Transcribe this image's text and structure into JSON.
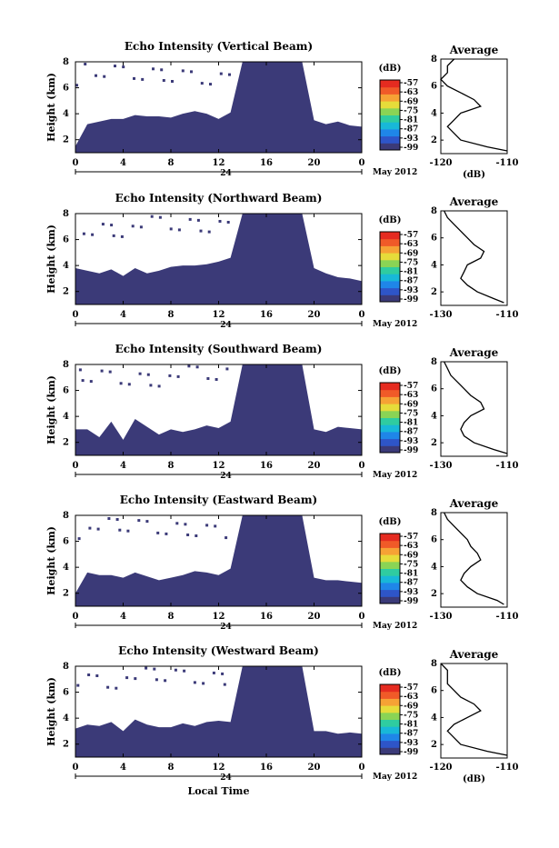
{
  "figure": {
    "xlabel": "Local Time",
    "date_label": "May 2012",
    "day_label": "24",
    "avg_title": "Average",
    "avg_unit": "(dB)",
    "cbar_unit": "(dB)",
    "ylabel": "Height (km)"
  },
  "colors": {
    "echo_fill": "#3b3a78",
    "background": "#ffffff",
    "colorbar": [
      "#3b3a78",
      "#2e55c8",
      "#1f86e8",
      "#18b8d8",
      "#2fcca0",
      "#8ad455",
      "#e6dc3a",
      "#f6a235",
      "#f05a28",
      "#e52b20"
    ]
  },
  "chart_data": [
    {
      "type": "heatmap",
      "title": "Echo Intensity (Vertical Beam)",
      "xlabel": "",
      "ylabel": "Height (km)",
      "x_ticks": [
        "0",
        "4",
        "8",
        "12",
        "16",
        "20",
        "0"
      ],
      "y_ticks": [
        "2",
        "4",
        "6",
        "8"
      ],
      "xlim": [
        0,
        24
      ],
      "ylim": [
        1,
        8
      ],
      "colorbar_ticks": [
        "-57",
        "-63",
        "-69",
        "-75",
        "-81",
        "-87",
        "-93",
        "-99"
      ],
      "top_height_km": [
        1.5,
        3.2,
        3.4,
        3.6,
        3.6,
        3.9,
        3.8,
        3.8,
        3.7,
        4.0,
        4.2,
        4.0,
        3.6,
        4.1,
        8.0,
        8.0,
        8.0,
        8.0,
        8.0,
        8.0,
        3.5,
        3.2,
        3.4,
        3.1,
        3.0
      ],
      "average": {
        "xlim": [
          -120,
          -110
        ],
        "x_ticks": [
          "-120",
          "-110"
        ],
        "y_ticks": [
          "2",
          "4",
          "6",
          "8"
        ],
        "ylim": [
          1,
          8
        ],
        "height_km": [
          1.2,
          1.5,
          2.0,
          2.5,
          3.0,
          3.5,
          4.0,
          4.5,
          5.0,
          5.5,
          6.0,
          6.5,
          7.0,
          7.5,
          8.0
        ],
        "value_db": [
          -110,
          -113,
          -117,
          -118,
          -119,
          -118,
          -117,
          -114,
          -115,
          -117,
          -119,
          -120,
          -119,
          -119,
          -118
        ]
      }
    },
    {
      "type": "heatmap",
      "title": "Echo Intensity (Northward Beam)",
      "xlabel": "",
      "ylabel": "Height (km)",
      "x_ticks": [
        "0",
        "4",
        "8",
        "12",
        "16",
        "20",
        "0"
      ],
      "y_ticks": [
        "2",
        "4",
        "6",
        "8"
      ],
      "xlim": [
        0,
        24
      ],
      "ylim": [
        1,
        8
      ],
      "colorbar_ticks": [
        "-57",
        "-63",
        "-69",
        "-75",
        "-81",
        "-87",
        "-93",
        "-99"
      ],
      "top_height_km": [
        3.8,
        3.6,
        3.4,
        3.7,
        3.2,
        3.8,
        3.4,
        3.6,
        3.9,
        4.0,
        4.0,
        4.1,
        4.3,
        4.6,
        8.0,
        8.0,
        8.0,
        8.0,
        8.0,
        8.0,
        3.8,
        3.4,
        3.1,
        3.0,
        2.8
      ],
      "average": {
        "xlim": [
          -130,
          -110
        ],
        "x_ticks": [
          "-130",
          "-110"
        ],
        "y_ticks": [
          "2",
          "4",
          "6",
          "8"
        ],
        "ylim": [
          1,
          8
        ],
        "height_km": [
          1.2,
          1.5,
          2.0,
          2.5,
          3.0,
          3.5,
          4.0,
          4.5,
          5.0,
          5.5,
          6.0,
          6.5,
          7.0,
          7.5,
          8.0
        ],
        "value_db": [
          -111,
          -114,
          -119,
          -122,
          -124,
          -123,
          -122,
          -118,
          -117,
          -120,
          -122,
          -124,
          -126,
          -128,
          -129
        ]
      }
    },
    {
      "type": "heatmap",
      "title": "Echo Intensity (Southward Beam)",
      "xlabel": "",
      "ylabel": "Height (km)",
      "x_ticks": [
        "0",
        "4",
        "8",
        "12",
        "16",
        "20",
        "0"
      ],
      "y_ticks": [
        "2",
        "4",
        "6",
        "8"
      ],
      "xlim": [
        0,
        24
      ],
      "ylim": [
        1,
        8
      ],
      "colorbar_ticks": [
        "-57",
        "-63",
        "-69",
        "-75",
        "-81",
        "-87",
        "-93",
        "-99"
      ],
      "top_height_km": [
        3.0,
        3.0,
        2.4,
        3.6,
        2.2,
        3.8,
        3.2,
        2.6,
        3.0,
        2.8,
        3.0,
        3.3,
        3.1,
        3.6,
        8.0,
        8.0,
        8.0,
        8.0,
        8.0,
        8.0,
        3.0,
        2.8,
        3.2,
        3.1,
        3.0
      ],
      "average": {
        "xlim": [
          -130,
          -110
        ],
        "x_ticks": [
          "-130",
          "-110"
        ],
        "y_ticks": [
          "2",
          "4",
          "6",
          "8"
        ],
        "ylim": [
          1,
          8
        ],
        "height_km": [
          1.2,
          1.5,
          2.0,
          2.5,
          3.0,
          3.5,
          4.0,
          4.5,
          5.0,
          5.5,
          6.0,
          6.5,
          7.0,
          7.5,
          8.0
        ],
        "value_db": [
          -110,
          -114,
          -120,
          -123,
          -124,
          -123,
          -121,
          -117,
          -118,
          -121,
          -123,
          -125,
          -127,
          -128,
          -129
        ]
      }
    },
    {
      "type": "heatmap",
      "title": "Echo Intensity (Eastward Beam)",
      "xlabel": "",
      "ylabel": "Height (km)",
      "x_ticks": [
        "0",
        "4",
        "8",
        "12",
        "16",
        "20",
        "0"
      ],
      "y_ticks": [
        "2",
        "4",
        "6",
        "8"
      ],
      "xlim": [
        0,
        24
      ],
      "ylim": [
        1,
        8
      ],
      "colorbar_ticks": [
        "-57",
        "-63",
        "-69",
        "-75",
        "-81",
        "-87",
        "-93",
        "-99"
      ],
      "top_height_km": [
        2.0,
        3.6,
        3.4,
        3.4,
        3.2,
        3.6,
        3.3,
        3.0,
        3.2,
        3.4,
        3.7,
        3.6,
        3.4,
        3.9,
        8.0,
        8.0,
        8.0,
        8.0,
        8.0,
        8.0,
        3.2,
        3.0,
        3.0,
        2.9,
        2.8
      ],
      "average": {
        "xlim": [
          -130,
          -110
        ],
        "x_ticks": [
          "-130",
          "-110"
        ],
        "y_ticks": [
          "2",
          "4",
          "6",
          "8"
        ],
        "ylim": [
          1,
          8
        ],
        "height_km": [
          1.2,
          1.5,
          2.0,
          2.5,
          3.0,
          3.5,
          4.0,
          4.5,
          5.0,
          5.5,
          6.0,
          6.5,
          7.0,
          7.5,
          8.0
        ],
        "value_db": [
          -111,
          -113,
          -119,
          -122,
          -124,
          -123,
          -121,
          -118,
          -119,
          -121,
          -122,
          -124,
          -126,
          -128,
          -129
        ]
      }
    },
    {
      "type": "heatmap",
      "title": "Echo Intensity (Westward Beam)",
      "xlabel": "Local Time",
      "ylabel": "Height (km)",
      "x_ticks": [
        "0",
        "4",
        "8",
        "12",
        "16",
        "20",
        "0"
      ],
      "y_ticks": [
        "2",
        "4",
        "6",
        "8"
      ],
      "xlim": [
        0,
        24
      ],
      "ylim": [
        1,
        8
      ],
      "colorbar_ticks": [
        "-57",
        "-63",
        "-69",
        "-75",
        "-81",
        "-87",
        "-93",
        "-99"
      ],
      "top_height_km": [
        3.2,
        3.5,
        3.4,
        3.7,
        3.0,
        3.9,
        3.5,
        3.3,
        3.3,
        3.6,
        3.4,
        3.7,
        3.8,
        3.7,
        8.0,
        8.0,
        8.0,
        8.0,
        8.0,
        8.0,
        3.0,
        3.0,
        2.8,
        2.9,
        2.8
      ],
      "average": {
        "xlim": [
          -120,
          -110
        ],
        "x_ticks": [
          "-120",
          "-110"
        ],
        "y_ticks": [
          "2",
          "4",
          "6",
          "8"
        ],
        "ylim": [
          1,
          8
        ],
        "height_km": [
          1.2,
          1.5,
          2.0,
          2.5,
          3.0,
          3.5,
          4.0,
          4.5,
          5.0,
          5.5,
          6.0,
          6.5,
          7.0,
          7.5,
          8.0
        ],
        "value_db": [
          -110,
          -113,
          -117,
          -118,
          -119,
          -118,
          -116,
          -114,
          -115,
          -117,
          -118,
          -119,
          -119,
          -119,
          -120
        ]
      }
    }
  ]
}
